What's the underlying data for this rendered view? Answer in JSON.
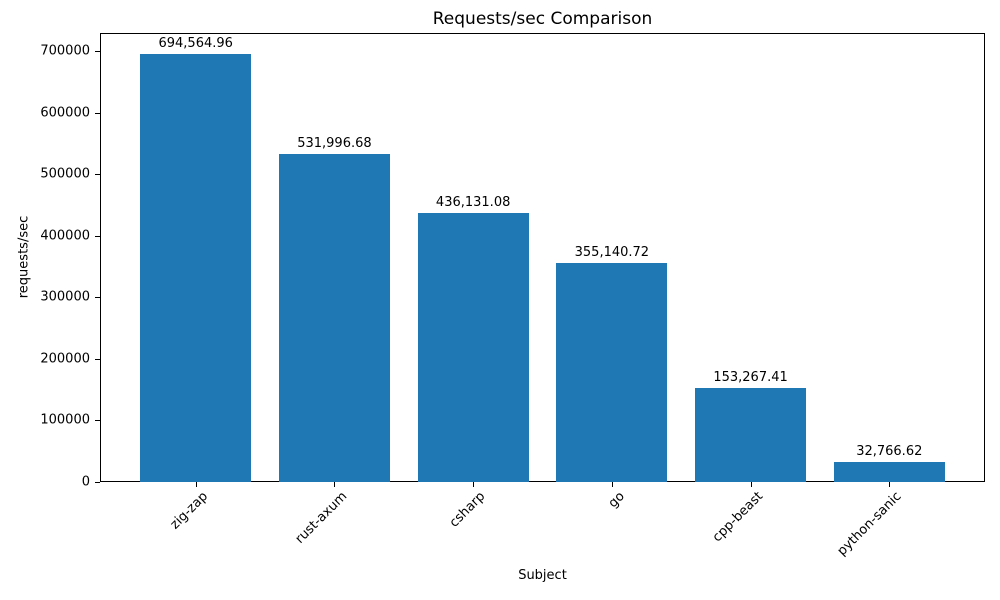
{
  "chart_data": {
    "type": "bar",
    "title": "Requests/sec Comparison",
    "xlabel": "Subject",
    "ylabel": "requests/sec",
    "categories": [
      "zig-zap",
      "rust-axum",
      "csharp",
      "go",
      "cpp-beast",
      "python-sanic"
    ],
    "values": [
      694564.96,
      531996.68,
      436131.08,
      355140.72,
      153267.41,
      32766.62
    ],
    "value_labels": [
      "694,564.96",
      "531,996.68",
      "436,131.08",
      "355,140.72",
      "153,267.41",
      "32,766.62"
    ],
    "yticks": [
      0,
      100000,
      200000,
      300000,
      400000,
      500000,
      600000,
      700000
    ],
    "ylim": [
      0,
      729293
    ],
    "xlim": [
      -0.69,
      5.69
    ],
    "bar_relative_width": 0.8,
    "bar_color": "#1f77b4",
    "text_color": "#000000",
    "grid": false,
    "legend_position": "none",
    "x_tick_rotation_deg": 45
  }
}
